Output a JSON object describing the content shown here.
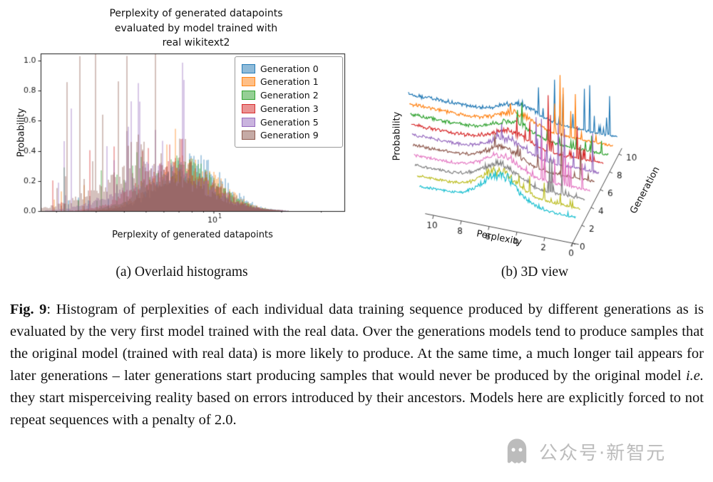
{
  "figure": {
    "panel_a": {
      "title_lines": [
        "Perplexity of generated datapoints",
        "evaluated by model trained with",
        "real wikitext2"
      ],
      "xlabel": "Perplexity of generated datapoints",
      "ylabel": "Probability",
      "subcaption": "(a) Overlaid histograms"
    },
    "panel_b": {
      "xlabel": "Perplexity",
      "ylabel": "Generation",
      "zlabel": "Probability",
      "subcaption": "(b) 3D view"
    },
    "caption": {
      "label": "Fig. 9",
      "part1": ": Histogram of perplexities of each individual data training sequence produced by different generations as is evaluated by the very first model trained with the real data. Over the generations models tend to produce samples that the original model (trained with real data) is more likely to produce. At the same time, a much longer tail appears for later generations – later generations start producing samples that would never be produced by the original model ",
      "italic": "i.e.",
      "part2": " they start misperceiving reality based on errors introduced by their ancestors. Models here are explicitly forced to not repeat sequences with a penalty of 2.0."
    }
  },
  "watermark": {
    "text": "公众号·新智元"
  },
  "chart_data": [
    {
      "type": "histogram-overlay",
      "title": "Perplexity of generated datapoints evaluated by model trained with real wikitext2",
      "xlabel": "Perplexity of generated datapoints",
      "ylabel": "Probability",
      "x_scale": "log10",
      "xlim": [
        1.7,
        38
      ],
      "ylim": [
        0,
        1.047
      ],
      "ytick_labels": [
        "0.0",
        "0.2",
        "0.4",
        "0.6",
        "0.8",
        "1.0"
      ],
      "xtick_main": "10",
      "xtick_sup": "1",
      "minor_ticks": [
        2,
        3,
        4,
        5,
        6,
        7,
        8,
        9,
        20,
        30
      ],
      "legend_position": "upper right",
      "series": [
        {
          "name": "Generation 0",
          "color": "#1f77b4",
          "peak_perplexity": 8.0,
          "peak_prob": 0.3,
          "spread": 0.14,
          "spike_level": 0.12
        },
        {
          "name": "Generation 1",
          "color": "#ff7f0e",
          "peak_perplexity": 7.6,
          "peak_prob": 0.29,
          "spread": 0.145,
          "spike_level": 0.2
        },
        {
          "name": "Generation 2",
          "color": "#2ca02c",
          "peak_perplexity": 7.2,
          "peak_prob": 0.29,
          "spread": 0.15,
          "spike_level": 0.28
        },
        {
          "name": "Generation 3",
          "color": "#d62728",
          "peak_perplexity": 6.8,
          "peak_prob": 0.28,
          "spread": 0.16,
          "spike_level": 0.38
        },
        {
          "name": "Generation 5",
          "color": "#9467bd",
          "peak_perplexity": 6.0,
          "peak_prob": 0.27,
          "spread": 0.185,
          "spike_level": 0.72
        },
        {
          "name": "Generation 9",
          "color": "#8c564b",
          "peak_perplexity": 5.2,
          "peak_prob": 0.27,
          "spread": 0.21,
          "spike_level": 1.0
        }
      ]
    },
    {
      "type": "ridge3d",
      "xlabel": "Perplexity",
      "ylabel": "Generation",
      "zlabel": "Probability",
      "x_ticks": [
        10,
        8,
        6,
        4,
        2,
        0
      ],
      "y_ticks": [
        0,
        2,
        4,
        6,
        8,
        10
      ],
      "generations": [
        {
          "gen": 0,
          "color": "#17becf",
          "hump": 0.38,
          "hump_p": 5.2,
          "tail_p": 11.0,
          "spike": 0.1
        },
        {
          "gen": 1,
          "color": "#bcbd22",
          "hump": 0.3,
          "hump_p": 5.6,
          "tail_p": 11.5,
          "spike": 0.35
        },
        {
          "gen": 2,
          "color": "#7f7f7f",
          "hump": 0.26,
          "hump_p": 5.9,
          "tail_p": 12.0,
          "spike": 0.5
        },
        {
          "gen": 3,
          "color": "#e377c2",
          "hump": 0.24,
          "hump_p": 6.1,
          "tail_p": 12.4,
          "spike": 0.62
        },
        {
          "gen": 4,
          "color": "#8c564b",
          "hump": 0.22,
          "hump_p": 6.3,
          "tail_p": 12.8,
          "spike": 0.72
        },
        {
          "gen": 5,
          "color": "#9467bd",
          "hump": 0.21,
          "hump_p": 6.4,
          "tail_p": 13.2,
          "spike": 0.82
        },
        {
          "gen": 6,
          "color": "#d62728",
          "hump": 0.2,
          "hump_p": 6.5,
          "tail_p": 13.6,
          "spike": 0.92
        },
        {
          "gen": 7,
          "color": "#2ca02c",
          "hump": 0.2,
          "hump_p": 6.6,
          "tail_p": 14.0,
          "spike": 1.0
        },
        {
          "gen": 8,
          "color": "#ff7f0e",
          "hump": 0.19,
          "hump_p": 6.7,
          "tail_p": 14.4,
          "spike": 1.08
        },
        {
          "gen": 9,
          "color": "#1f77b4",
          "hump": 0.19,
          "hump_p": 6.8,
          "tail_p": 14.8,
          "spike": 1.15
        }
      ]
    }
  ]
}
